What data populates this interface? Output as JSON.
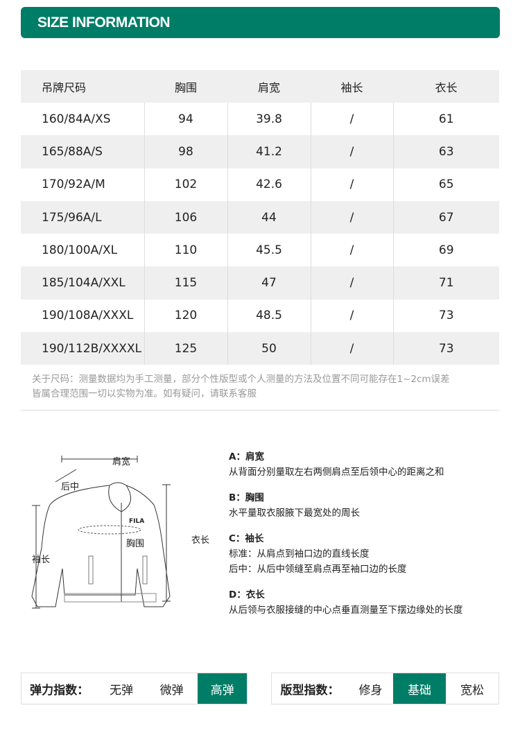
{
  "banner": {
    "title": "SIZE INFORMATION"
  },
  "table": {
    "headers": [
      "吊牌尺码",
      "胸围",
      "肩宽",
      "袖长",
      "衣长"
    ],
    "rows": [
      [
        "160/84A/XS",
        "94",
        "39.8",
        "/",
        "61"
      ],
      [
        "165/88A/S",
        "98",
        "41.2",
        "/",
        "63"
      ],
      [
        "170/92A/M",
        "102",
        "42.6",
        "/",
        "65"
      ],
      [
        "175/96A/L",
        "106",
        "44",
        "/",
        "67"
      ],
      [
        "180/100A/XL",
        "110",
        "45.5",
        "/",
        "69"
      ],
      [
        "185/104A/XXL",
        "115",
        "47",
        "/",
        "71"
      ],
      [
        "190/108A/XXXL",
        "120",
        "48.5",
        "/",
        "73"
      ],
      [
        "190/112B/XXXXL",
        "125",
        "50",
        "/",
        "73"
      ]
    ]
  },
  "note": {
    "line1": "关于尺码：测量数据均为手工测量，部分个性版型或个人测量的方法及位置不同可能存在1~2cm误差",
    "line2": "皆属合理范围一切以实物为准。如有疑问，请联系客服"
  },
  "diagram": {
    "shoulder": "肩宽",
    "back_center": "后中",
    "chest": "胸围",
    "length": "衣长",
    "sleeve": "袖长",
    "logo": "FILA"
  },
  "descriptions": [
    {
      "title": "A：肩宽",
      "lines": [
        "从背面分别量取左右两侧肩点至后领中心的距离之和"
      ]
    },
    {
      "title": "B：胸围",
      "lines": [
        "水平量取衣服腋下最宽处的周长"
      ]
    },
    {
      "title": "C：袖长",
      "lines": [
        "标准：从肩点到袖口边的直线长度",
        "后中：从后中领缝至肩点再至袖口边的长度"
      ]
    },
    {
      "title": "D：衣长",
      "lines": [
        "从后领与衣服接缝的中心点垂直测量至下摆边缘处的长度"
      ]
    }
  ],
  "elasticity": {
    "label": "弹力指数：",
    "options": [
      "无弹",
      "微弹",
      "高弹"
    ],
    "selected": "高弹"
  },
  "fit": {
    "label": "版型指数：",
    "options": [
      "修身",
      "基础",
      "宽松"
    ],
    "selected": "基础"
  },
  "colors": {
    "accent": "#007d67"
  }
}
